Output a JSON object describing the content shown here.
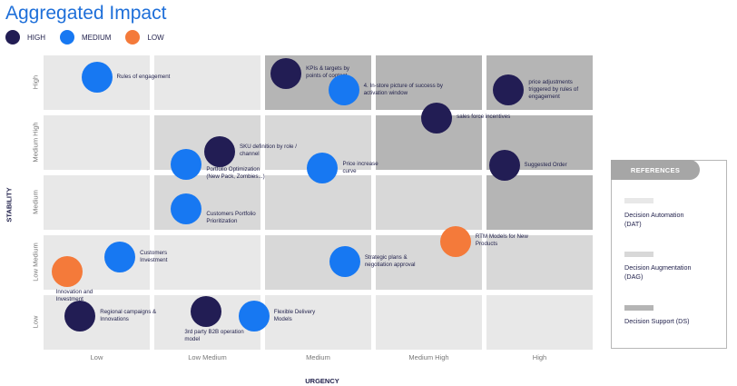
{
  "title": "Aggregated Impact",
  "legend": [
    {
      "label": "HIGH",
      "color": "#221d54"
    },
    {
      "label": "MEDIUM",
      "color": "#1778f2"
    },
    {
      "label": "LOW",
      "color": "#f47a3a"
    }
  ],
  "axes": {
    "x_title": "URGENCY",
    "y_title": "STABILITY",
    "x_levels": [
      "Low",
      "Low Medium",
      "Medium",
      "Medium High",
      "High"
    ],
    "y_levels": [
      "High",
      "Medium High",
      "Medium",
      "Low Medium",
      "Low"
    ]
  },
  "cell_shades": [
    [
      "DAT",
      "DAT",
      "DS",
      "DS",
      "DS"
    ],
    [
      "DAT",
      "DAG",
      "DAG",
      "DS",
      "DS"
    ],
    [
      "DAT",
      "DAG",
      "DAG",
      "DAG",
      "DS"
    ],
    [
      "DAT",
      "DAT",
      "DAG",
      "DAG",
      "DAG"
    ],
    [
      "DAT",
      "DAT",
      "DAT",
      "DAT",
      "DAT"
    ]
  ],
  "shade_colors": {
    "DAT": "#e8e8e8",
    "DAG": "#d8d8d8",
    "DS": "#b5b5b5"
  },
  "items": [
    {
      "label": "Rules of engagement",
      "impact": "MEDIUM",
      "urgency": 0.48,
      "stability": 0.36
    },
    {
      "label": "KPIs & targets by\npoints of contact",
      "impact": "HIGH",
      "urgency": 2.19,
      "stability": 0.3
    },
    {
      "label": "4. In-store picture of success by\nactivation window",
      "impact": "MEDIUM",
      "urgency": 2.71,
      "stability": 0.58
    },
    {
      "label": "price adjustments\ntriggered  by rules of\nengagement",
      "impact": "HIGH",
      "urgency": 4.2,
      "stability": 0.58
    },
    {
      "label": "sales force incentives",
      "impact": "HIGH",
      "urgency": 3.55,
      "stability": 1.04
    },
    {
      "label": "SKU definition by role /\nchannel",
      "impact": "HIGH",
      "urgency": 1.59,
      "stability": 1.6
    },
    {
      "label": "Portfolio Optimization\n(New Pack, Zombies...)",
      "impact": "MEDIUM",
      "urgency": 1.29,
      "stability": 1.82
    },
    {
      "label": "Price increase\ncurve",
      "impact": "MEDIUM",
      "urgency": 2.52,
      "stability": 1.88
    },
    {
      "label": "Suggested Order",
      "impact": "HIGH",
      "urgency": 4.16,
      "stability": 1.84
    },
    {
      "label": "Customers Portfolio\nPrioritization",
      "impact": "MEDIUM",
      "urgency": 1.29,
      "stability": 2.56
    },
    {
      "label": "RTM Models for New\nProducts",
      "impact": "LOW",
      "urgency": 3.72,
      "stability": 3.1
    },
    {
      "label": "Customers\nInvestment",
      "impact": "MEDIUM",
      "urgency": 0.69,
      "stability": 3.37
    },
    {
      "label": "Strategic  plans &\nnegotiation approval",
      "impact": "MEDIUM",
      "urgency": 2.72,
      "stability": 3.44
    },
    {
      "label": "Innovation and\nInvestment",
      "impact": "LOW",
      "urgency": 0.21,
      "stability": 3.61
    },
    {
      "label": "Regional campaigns &\nInnovations",
      "impact": "HIGH",
      "urgency": 0.33,
      "stability": 4.35
    },
    {
      "label": "3rd party B2B operation\nmodel",
      "impact": "HIGH",
      "urgency": 1.47,
      "stability": 4.27
    },
    {
      "label": "Flexible Delivery\nModels",
      "impact": "MEDIUM",
      "urgency": 1.9,
      "stability": 4.35
    }
  ],
  "references": {
    "title": "REFERENCES",
    "entries": [
      {
        "code": "DAT",
        "label": "Decision Automation\n(DAT)"
      },
      {
        "code": "DAG",
        "label": "Decision Augmentation\n(DAG)"
      },
      {
        "code": "DS",
        "label": "Decision Support (DS)"
      }
    ]
  }
}
